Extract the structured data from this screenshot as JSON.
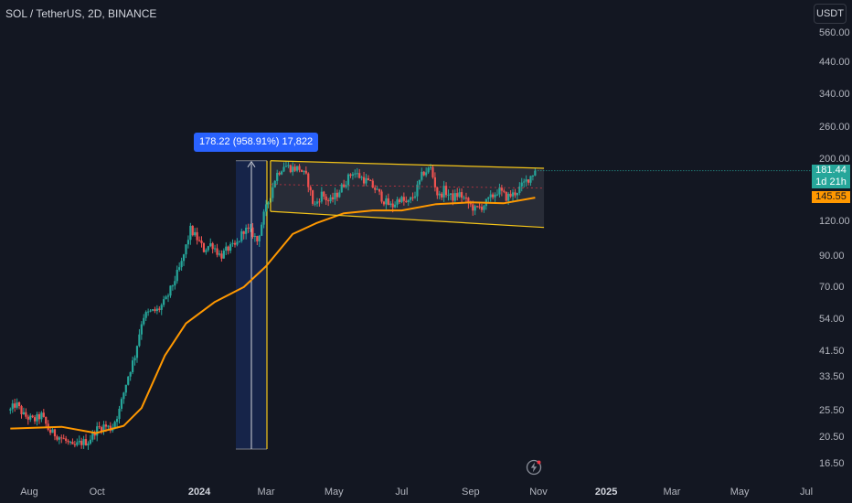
{
  "header": {
    "symbol_title": "SOL / TetherUS, 2D, BINANCE",
    "currency": "USDT"
  },
  "price_tags": {
    "last_price": "181.44",
    "countdown": "1d 21h",
    "ma_value": "145.55",
    "last_color": "#26a69a",
    "ma_color": "#ff9800"
  },
  "measure": {
    "label": "178.22 (958.91%) 17,822",
    "from_price": 18.6,
    "to_price": 196.8
  },
  "icons": {
    "bolt": "lightning-icon"
  },
  "chart_data": {
    "type": "candlestick",
    "title": "SOL / TetherUS, 2D, BINANCE",
    "y_scale": "log",
    "ylim": [
      14.5,
      660
    ],
    "y_ticks": [
      "560.00",
      "440.00",
      "340.00",
      "260.00",
      "200.00",
      "120.00",
      "90.00",
      "70.00",
      "54.00",
      "41.50",
      "33.50",
      "25.50",
      "20.50",
      "16.50"
    ],
    "x_ticks": [
      "Aug",
      "Oct",
      "2024",
      "Mar",
      "May",
      "Jul",
      "Sep",
      "Nov",
      "2025",
      "Mar",
      "May",
      "Jul"
    ],
    "close_path": [
      [
        "2023-07-15",
        25.5
      ],
      [
        "2023-07-20",
        27.0
      ],
      [
        "2023-07-27",
        24.5
      ],
      [
        "2023-08-05",
        23.5
      ],
      [
        "2023-08-12",
        24.5
      ],
      [
        "2023-08-19",
        21.5
      ],
      [
        "2023-08-26",
        20.8
      ],
      [
        "2023-09-02",
        20.0
      ],
      [
        "2023-09-09",
        18.8
      ],
      [
        "2023-09-16",
        19.6
      ],
      [
        "2023-09-23",
        19.8
      ],
      [
        "2023-09-30",
        21.8
      ],
      [
        "2023-10-07",
        22.5
      ],
      [
        "2023-10-14",
        22.0
      ],
      [
        "2023-10-21",
        25.5
      ],
      [
        "2023-10-28",
        33.0
      ],
      [
        "2023-11-04",
        40.0
      ],
      [
        "2023-11-11",
        55.0
      ],
      [
        "2023-11-18",
        57.0
      ],
      [
        "2023-11-25",
        58.0
      ],
      [
        "2023-12-02",
        63.0
      ],
      [
        "2023-12-09",
        73.0
      ],
      [
        "2023-12-16",
        85.0
      ],
      [
        "2023-12-24",
        112.0
      ],
      [
        "2023-12-30",
        104.0
      ],
      [
        "2024-01-05",
        95.0
      ],
      [
        "2024-01-12",
        100.0
      ],
      [
        "2024-01-20",
        90.0
      ],
      [
        "2024-01-27",
        96.0
      ],
      [
        "2024-02-03",
        98.0
      ],
      [
        "2024-02-10",
        112.0
      ],
      [
        "2024-02-17",
        110.0
      ],
      [
        "2024-02-22",
        102.0
      ],
      [
        "2024-02-28",
        126.0
      ],
      [
        "2024-03-04",
        145.0
      ],
      [
        "2024-03-10",
        175.0
      ],
      [
        "2024-03-17",
        190.0
      ],
      [
        "2024-03-24",
        185.0
      ],
      [
        "2024-03-31",
        185.0
      ],
      [
        "2024-04-07",
        170.0
      ],
      [
        "2024-04-13",
        135.0
      ],
      [
        "2024-04-20",
        150.0
      ],
      [
        "2024-04-27",
        140.0
      ],
      [
        "2024-05-04",
        150.0
      ],
      [
        "2024-05-11",
        165.0
      ],
      [
        "2024-05-18",
        180.0
      ],
      [
        "2024-05-25",
        172.0
      ],
      [
        "2024-06-01",
        165.0
      ],
      [
        "2024-06-08",
        155.0
      ],
      [
        "2024-06-15",
        142.0
      ],
      [
        "2024-06-22",
        135.0
      ],
      [
        "2024-06-29",
        145.0
      ],
      [
        "2024-07-06",
        138.0
      ],
      [
        "2024-07-13",
        150.0
      ],
      [
        "2024-07-20",
        178.0
      ],
      [
        "2024-07-27",
        185.0
      ],
      [
        "2024-08-03",
        145.0
      ],
      [
        "2024-08-08",
        155.0
      ],
      [
        "2024-08-15",
        145.0
      ],
      [
        "2024-08-22",
        150.0
      ],
      [
        "2024-08-29",
        140.0
      ],
      [
        "2024-09-05",
        132.0
      ],
      [
        "2024-09-12",
        136.0
      ],
      [
        "2024-09-19",
        145.0
      ],
      [
        "2024-09-26",
        155.0
      ],
      [
        "2024-10-03",
        146.0
      ],
      [
        "2024-10-10",
        150.0
      ],
      [
        "2024-10-17",
        160.0
      ],
      [
        "2024-10-24",
        172.0
      ],
      [
        "2024-10-29",
        181.44
      ]
    ],
    "moving_average": [
      [
        "2023-07-15",
        22.0
      ],
      [
        "2023-08-30",
        22.3
      ],
      [
        "2023-09-30",
        21.2
      ],
      [
        "2023-10-25",
        22.5
      ],
      [
        "2023-11-10",
        26.0
      ],
      [
        "2023-12-01",
        40.0
      ],
      [
        "2023-12-20",
        52.0
      ],
      [
        "2024-01-15",
        62.0
      ],
      [
        "2024-02-10",
        70.0
      ],
      [
        "2024-03-01",
        83.0
      ],
      [
        "2024-03-25",
        108.0
      ],
      [
        "2024-04-15",
        118.0
      ],
      [
        "2024-05-10",
        128.0
      ],
      [
        "2024-06-05",
        131.0
      ],
      [
        "2024-07-01",
        131.0
      ],
      [
        "2024-08-01",
        138.0
      ],
      [
        "2024-09-01",
        140.0
      ],
      [
        "2024-10-01",
        139.0
      ],
      [
        "2024-10-29",
        145.55
      ]
    ],
    "channel": {
      "upper": [
        [
          "2024-03-05",
          196.8
        ],
        [
          "2024-11-06",
          185.0
        ]
      ],
      "lower": [
        [
          "2024-03-05",
          130.0
        ],
        [
          "2024-11-06",
          114.0
        ]
      ],
      "midline_price": 162.0
    },
    "last_price": 181.44,
    "ma_last": 145.55
  }
}
